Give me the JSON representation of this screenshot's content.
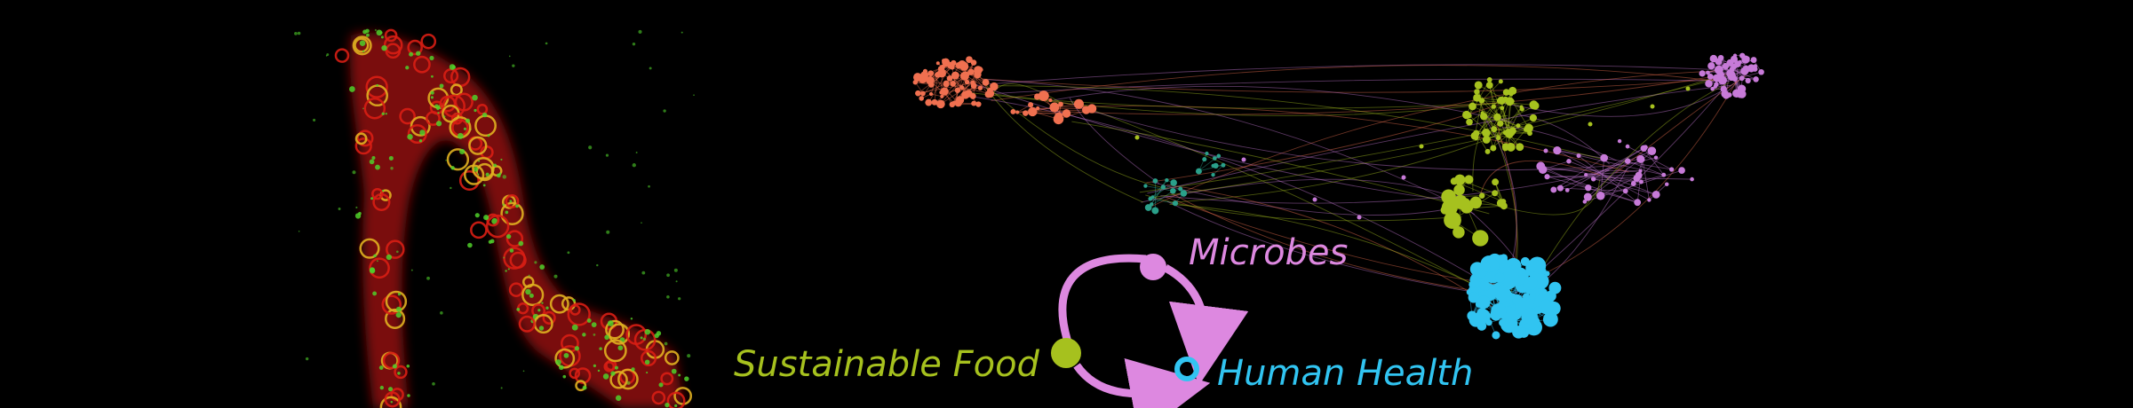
{
  "cycle": {
    "microbes_label": "Microbes",
    "food_label": "Sustainable Food",
    "health_label": "Human Health"
  },
  "colors": {
    "background": "#000000",
    "microbes": "#dd88e0",
    "food": "#a6c11e",
    "health": "#31c4f1",
    "cluster_orange": "#f07050",
    "cluster_teal": "#2aa08a",
    "cluster_olive": "#a6c11e",
    "cluster_violet": "#c77ad8",
    "cluster_cyan": "#31c4f1",
    "microscopy_red": "#d81e14",
    "microscopy_green": "#4fd02a"
  },
  "panels": [
    "microscopy-image",
    "microbe-network-graph",
    "cycle-diagram"
  ]
}
